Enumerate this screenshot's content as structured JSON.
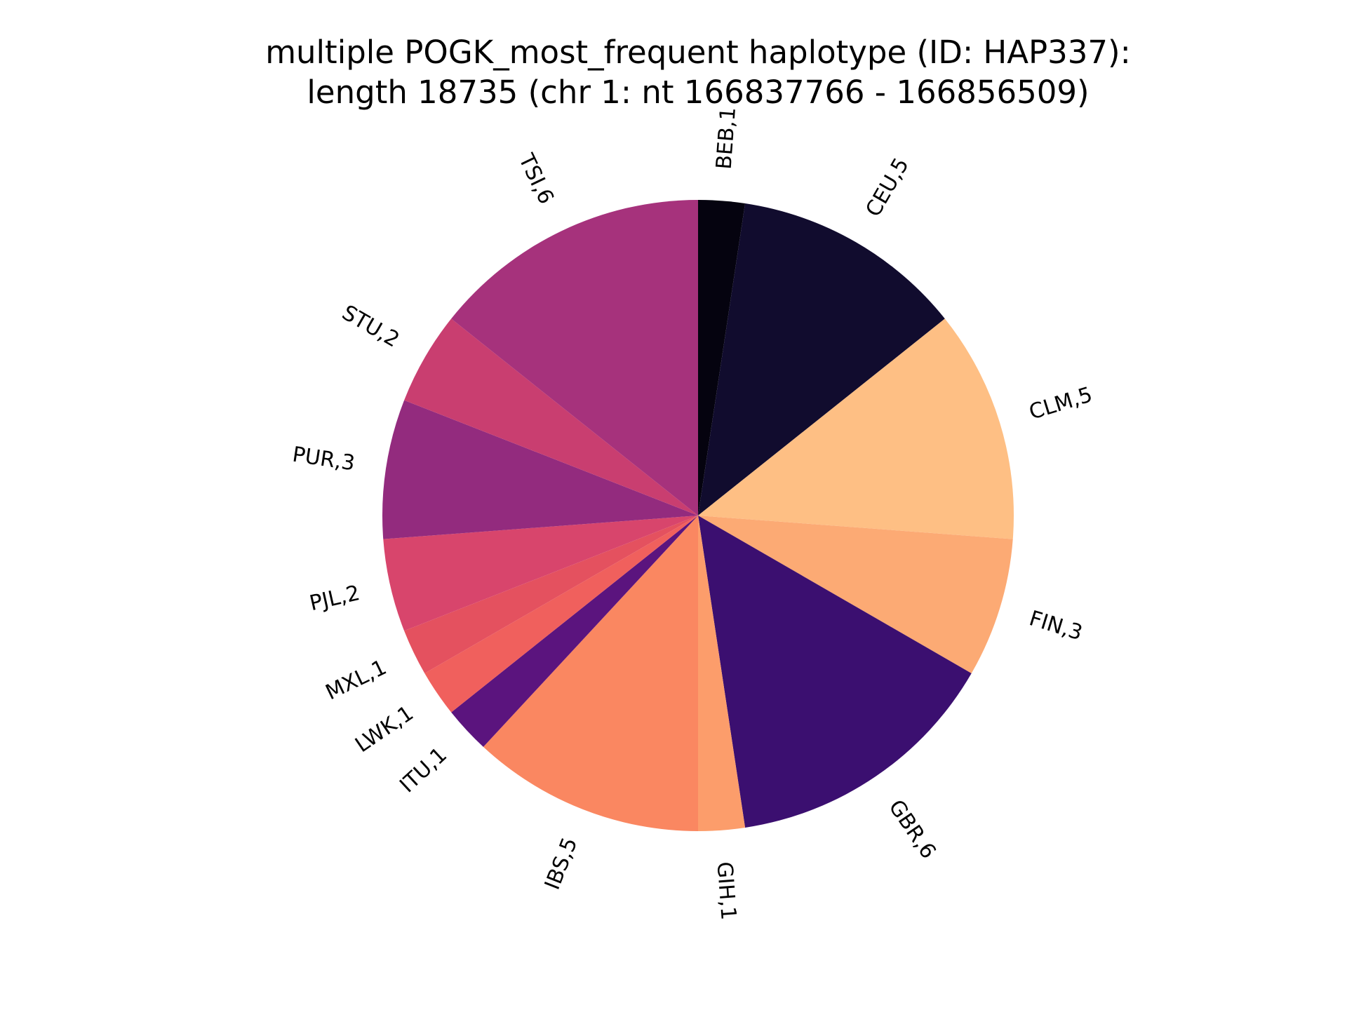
{
  "chart_data": {
    "type": "pie",
    "title_lines": [
      "multiple POGK_most_frequent haplotype (ID: HAP337):",
      "length 18735 (chr 1: nt 166837766 - 166856509)"
    ],
    "start_angle_deg": 90,
    "direction": "clockwise",
    "slices": [
      {
        "label": "BEB,1",
        "value": 1,
        "color": "#05030f"
      },
      {
        "label": "CEU,5",
        "value": 5,
        "color": "#110c2e"
      },
      {
        "label": "CLM,5",
        "value": 5,
        "color": "#febf84"
      },
      {
        "label": "FIN,3",
        "value": 3,
        "color": "#fcaa74"
      },
      {
        "label": "GBR,6",
        "value": 6,
        "color": "#3b0f70"
      },
      {
        "label": "GIH,1",
        "value": 1,
        "color": "#fc9d6b"
      },
      {
        "label": "IBS,5",
        "value": 5,
        "color": "#fa8761"
      },
      {
        "label": "ITU,1",
        "value": 1,
        "color": "#5b147e"
      },
      {
        "label": "LWK,1",
        "value": 1,
        "color": "#f0605d"
      },
      {
        "label": "MXL,1",
        "value": 1,
        "color": "#e4515f"
      },
      {
        "label": "PJL,2",
        "value": 2,
        "color": "#d8456c"
      },
      {
        "label": "PUR,3",
        "value": 3,
        "color": "#932b7e"
      },
      {
        "label": "STU,2",
        "value": 2,
        "color": "#c93e70"
      },
      {
        "label": "TSI,6",
        "value": 6,
        "color": "#a6327c"
      }
    ]
  }
}
